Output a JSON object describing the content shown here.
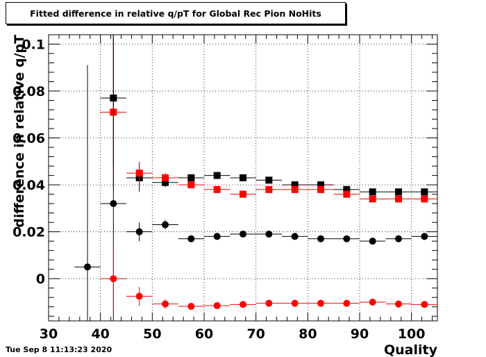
{
  "title": "Fitted difference in relative q/pT for Global Rec Pion NoHits",
  "datestamp": "Tue Sep  8 11:13:23 2020",
  "chart_data": {
    "type": "scatter",
    "xlabel": "Quality",
    "ylabel": "difference in relative q/pT",
    "xlim": [
      30,
      105
    ],
    "ylim": [
      -0.018,
      0.104
    ],
    "grid": true,
    "x_ticks": [
      30,
      40,
      50,
      60,
      70,
      80,
      90,
      100
    ],
    "y_ticks": [
      0,
      0.02,
      0.04,
      0.06,
      0.08,
      0.1
    ],
    "x_tick_labels": [
      "30",
      "40",
      "50",
      "60",
      "70",
      "80",
      "90",
      "100"
    ],
    "y_tick_labels": [
      "0",
      "0.02",
      "0.04",
      "0.06",
      "0.08",
      "0.1"
    ],
    "bin_half_width": 2.5,
    "series": [
      {
        "color": "#000000",
        "marker": "square",
        "x": [
          42.5,
          47.5,
          52.5,
          57.5,
          62.5,
          67.5,
          72.5,
          77.5,
          82.5,
          87.5,
          92.5,
          97.5,
          102.5
        ],
        "y": [
          0.077,
          0.043,
          0.041,
          0.043,
          0.044,
          0.043,
          0.042,
          0.04,
          0.04,
          0.038,
          0.037,
          0.037,
          0.037
        ],
        "yerr": [
          0.029,
          0.006,
          0.002,
          0.001,
          0.001,
          0.001,
          0.001,
          0.001,
          0.001,
          0.001,
          0.001,
          0.001,
          0.001
        ]
      },
      {
        "color": "#ff0000",
        "marker": "square",
        "x": [
          42.5,
          47.5,
          52.5,
          57.5,
          62.5,
          67.5,
          72.5,
          77.5,
          82.5,
          87.5,
          92.5,
          97.5,
          102.5
        ],
        "y": [
          0.071,
          0.045,
          0.043,
          0.04,
          0.038,
          0.036,
          0.038,
          0.038,
          0.038,
          0.036,
          0.034,
          0.034,
          0.034
        ],
        "yerr": [
          0.033,
          0.005,
          0.002,
          0.001,
          0.001,
          0.001,
          0.001,
          0.001,
          0.001,
          0.001,
          0.001,
          0.001,
          0.001
        ]
      },
      {
        "color": "#000000",
        "marker": "circle",
        "x": [
          37.5,
          42.5,
          47.5,
          52.5,
          57.5,
          62.5,
          67.5,
          72.5,
          77.5,
          82.5,
          87.5,
          92.5,
          97.5,
          102.5
        ],
        "y": [
          0.005,
          0.032,
          0.02,
          0.023,
          0.017,
          0.018,
          0.019,
          0.019,
          0.018,
          0.017,
          0.017,
          0.016,
          0.017,
          0.018
        ],
        "yerr": [
          0.086,
          0.078,
          0.004,
          0.002,
          0.001,
          0.001,
          0.001,
          0.001,
          0.001,
          0.001,
          0.001,
          0.001,
          0.001,
          0.001
        ]
      },
      {
        "color": "#ff0000",
        "marker": "circle",
        "x": [
          42.5,
          47.5,
          52.5,
          57.5,
          62.5,
          67.5,
          72.5,
          77.5,
          82.5,
          87.5,
          92.5,
          97.5,
          102.5
        ],
        "y": [
          0.0,
          -0.0075,
          -0.0108,
          -0.0118,
          -0.0115,
          -0.011,
          -0.0105,
          -0.0105,
          -0.0105,
          -0.0105,
          -0.01,
          -0.0108,
          -0.011
        ],
        "yerr": [
          0.015,
          0.004,
          0.002,
          0.001,
          0.001,
          0.001,
          0.001,
          0.001,
          0.001,
          0.001,
          0.001,
          0.001,
          0.001
        ]
      }
    ]
  }
}
